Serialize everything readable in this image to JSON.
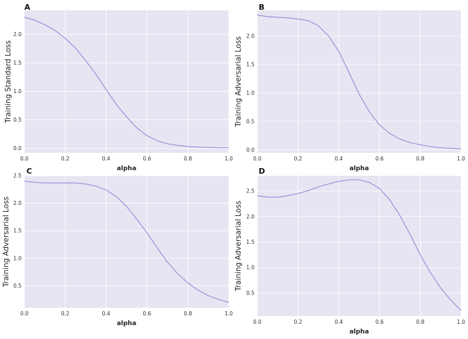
{
  "chart_data": [
    {
      "panel": "A",
      "type": "line",
      "xlabel": "alpha",
      "ylabel": "Training Standard Loss",
      "xlim": [
        0.0,
        1.0
      ],
      "ylim": [
        -0.08,
        2.42
      ],
      "xticks": [
        "0.0",
        "0.2",
        "0.4",
        "0.6",
        "0.8",
        "1.0"
      ],
      "yticks": [
        "0.0",
        "0.5",
        "1.0",
        "1.5",
        "2.0"
      ],
      "grid": true,
      "background": "#e8e4f2",
      "line_color": "#8e8ed6",
      "x": [
        0.0,
        0.05,
        0.1,
        0.15,
        0.2,
        0.25,
        0.3,
        0.35,
        0.4,
        0.45,
        0.5,
        0.55,
        0.6,
        0.65,
        0.7,
        0.75,
        0.8,
        0.85,
        0.9,
        0.95,
        1.0
      ],
      "y": [
        2.3,
        2.25,
        2.17,
        2.07,
        1.93,
        1.76,
        1.54,
        1.3,
        1.03,
        0.77,
        0.55,
        0.36,
        0.22,
        0.13,
        0.08,
        0.05,
        0.03,
        0.02,
        0.015,
        0.01,
        0.01
      ]
    },
    {
      "panel": "B",
      "type": "line",
      "xlabel": "alpha",
      "ylabel": "Training Adversarial Loss",
      "xlim": [
        0.0,
        1.0
      ],
      "ylim": [
        -0.05,
        2.45
      ],
      "xticks": [
        "0.0",
        "0.2",
        "0.4",
        "0.6",
        "0.8",
        "1.0"
      ],
      "yticks": [
        "0.0",
        "0.5",
        "1.0",
        "1.5",
        "2.0"
      ],
      "grid": true,
      "background": "#e8e4f2",
      "line_color": "#8e8ed6",
      "x": [
        0.0,
        0.05,
        0.1,
        0.15,
        0.2,
        0.25,
        0.3,
        0.35,
        0.4,
        0.45,
        0.5,
        0.55,
        0.6,
        0.65,
        0.7,
        0.75,
        0.8,
        0.85,
        0.9,
        0.95,
        1.0
      ],
      "y": [
        2.37,
        2.34,
        2.33,
        2.32,
        2.3,
        2.27,
        2.18,
        2.0,
        1.73,
        1.36,
        0.98,
        0.67,
        0.44,
        0.29,
        0.19,
        0.13,
        0.09,
        0.06,
        0.04,
        0.03,
        0.02
      ]
    },
    {
      "panel": "C",
      "type": "line",
      "xlabel": "alpha",
      "ylabel": "Training Adversarial Loss",
      "xlim": [
        0.0,
        1.0
      ],
      "ylim": [
        0.1,
        2.5
      ],
      "xticks": [
        "0.0",
        "0.2",
        "0.4",
        "0.6",
        "0.8",
        "1.0"
      ],
      "yticks": [
        "0.5",
        "1.0",
        "1.5",
        "2.0",
        "2.5"
      ],
      "grid": true,
      "background": "#e8e4f2",
      "line_color": "#8e8ed6",
      "x": [
        0.0,
        0.05,
        0.1,
        0.15,
        0.2,
        0.25,
        0.3,
        0.35,
        0.4,
        0.45,
        0.5,
        0.55,
        0.6,
        0.65,
        0.7,
        0.75,
        0.8,
        0.85,
        0.9,
        0.95,
        1.0
      ],
      "y": [
        2.4,
        2.38,
        2.37,
        2.37,
        2.37,
        2.37,
        2.35,
        2.31,
        2.24,
        2.12,
        1.94,
        1.71,
        1.46,
        1.19,
        0.93,
        0.72,
        0.55,
        0.42,
        0.32,
        0.25,
        0.2
      ]
    },
    {
      "panel": "D",
      "type": "line",
      "xlabel": "alpha",
      "ylabel": "Training Adversarial Loss",
      "xlim": [
        0.0,
        1.0
      ],
      "ylim": [
        0.05,
        2.8
      ],
      "xticks": [
        "0.0",
        "0.2",
        "0.4",
        "0.6",
        "0.8",
        "1.0"
      ],
      "yticks": [
        "0.5",
        "1.0",
        "1.5",
        "2.0",
        "2.5"
      ],
      "grid": true,
      "background": "#e8e4f2",
      "line_color": "#8e8ed6",
      "x": [
        0.0,
        0.05,
        0.1,
        0.15,
        0.2,
        0.25,
        0.3,
        0.35,
        0.4,
        0.45,
        0.5,
        0.55,
        0.6,
        0.65,
        0.7,
        0.75,
        0.8,
        0.85,
        0.9,
        0.95,
        1.0
      ],
      "y": [
        2.41,
        2.38,
        2.38,
        2.41,
        2.45,
        2.51,
        2.58,
        2.64,
        2.69,
        2.72,
        2.72,
        2.67,
        2.55,
        2.33,
        2.02,
        1.65,
        1.25,
        0.9,
        0.6,
        0.36,
        0.16
      ]
    }
  ]
}
